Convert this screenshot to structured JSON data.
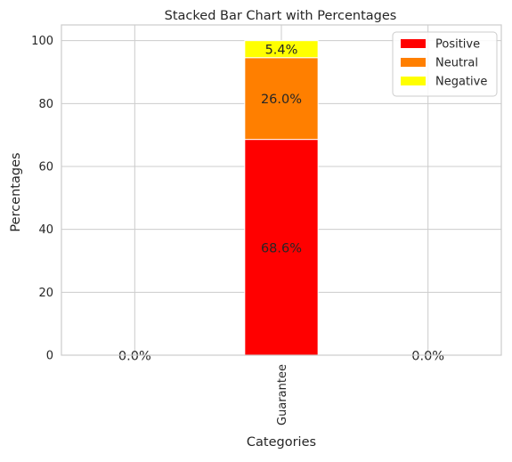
{
  "chart_data": {
    "type": "bar",
    "stacked": true,
    "title": "Stacked Bar Chart with Percentages",
    "xlabel": "Categories",
    "ylabel": "Percentages",
    "categories": [
      "Guarantee"
    ],
    "xlim": [
      -1.5,
      1.5
    ],
    "ylim": [
      0,
      105
    ],
    "yticks": [
      0,
      20,
      40,
      60,
      80,
      100
    ],
    "grid": true,
    "legend_position": "top-right",
    "series": [
      {
        "name": "Positive",
        "color": "#ff0000",
        "values": [
          68.6
        ]
      },
      {
        "name": "Neutral",
        "color": "#ff7f00",
        "values": [
          26.0
        ]
      },
      {
        "name": "Negative",
        "color": "#ffff00",
        "values": [
          5.4
        ]
      }
    ],
    "annotations": [
      {
        "text": "68.6%",
        "x": 0,
        "y": 34.3
      },
      {
        "text": "26.0%",
        "x": 0,
        "y": 81.6
      },
      {
        "text": "5.4%",
        "x": 0,
        "y": 97.3
      },
      {
        "text": "0.0%",
        "x": -1,
        "y": 0
      },
      {
        "text": "0.0%",
        "x": 1,
        "y": 0
      }
    ]
  }
}
